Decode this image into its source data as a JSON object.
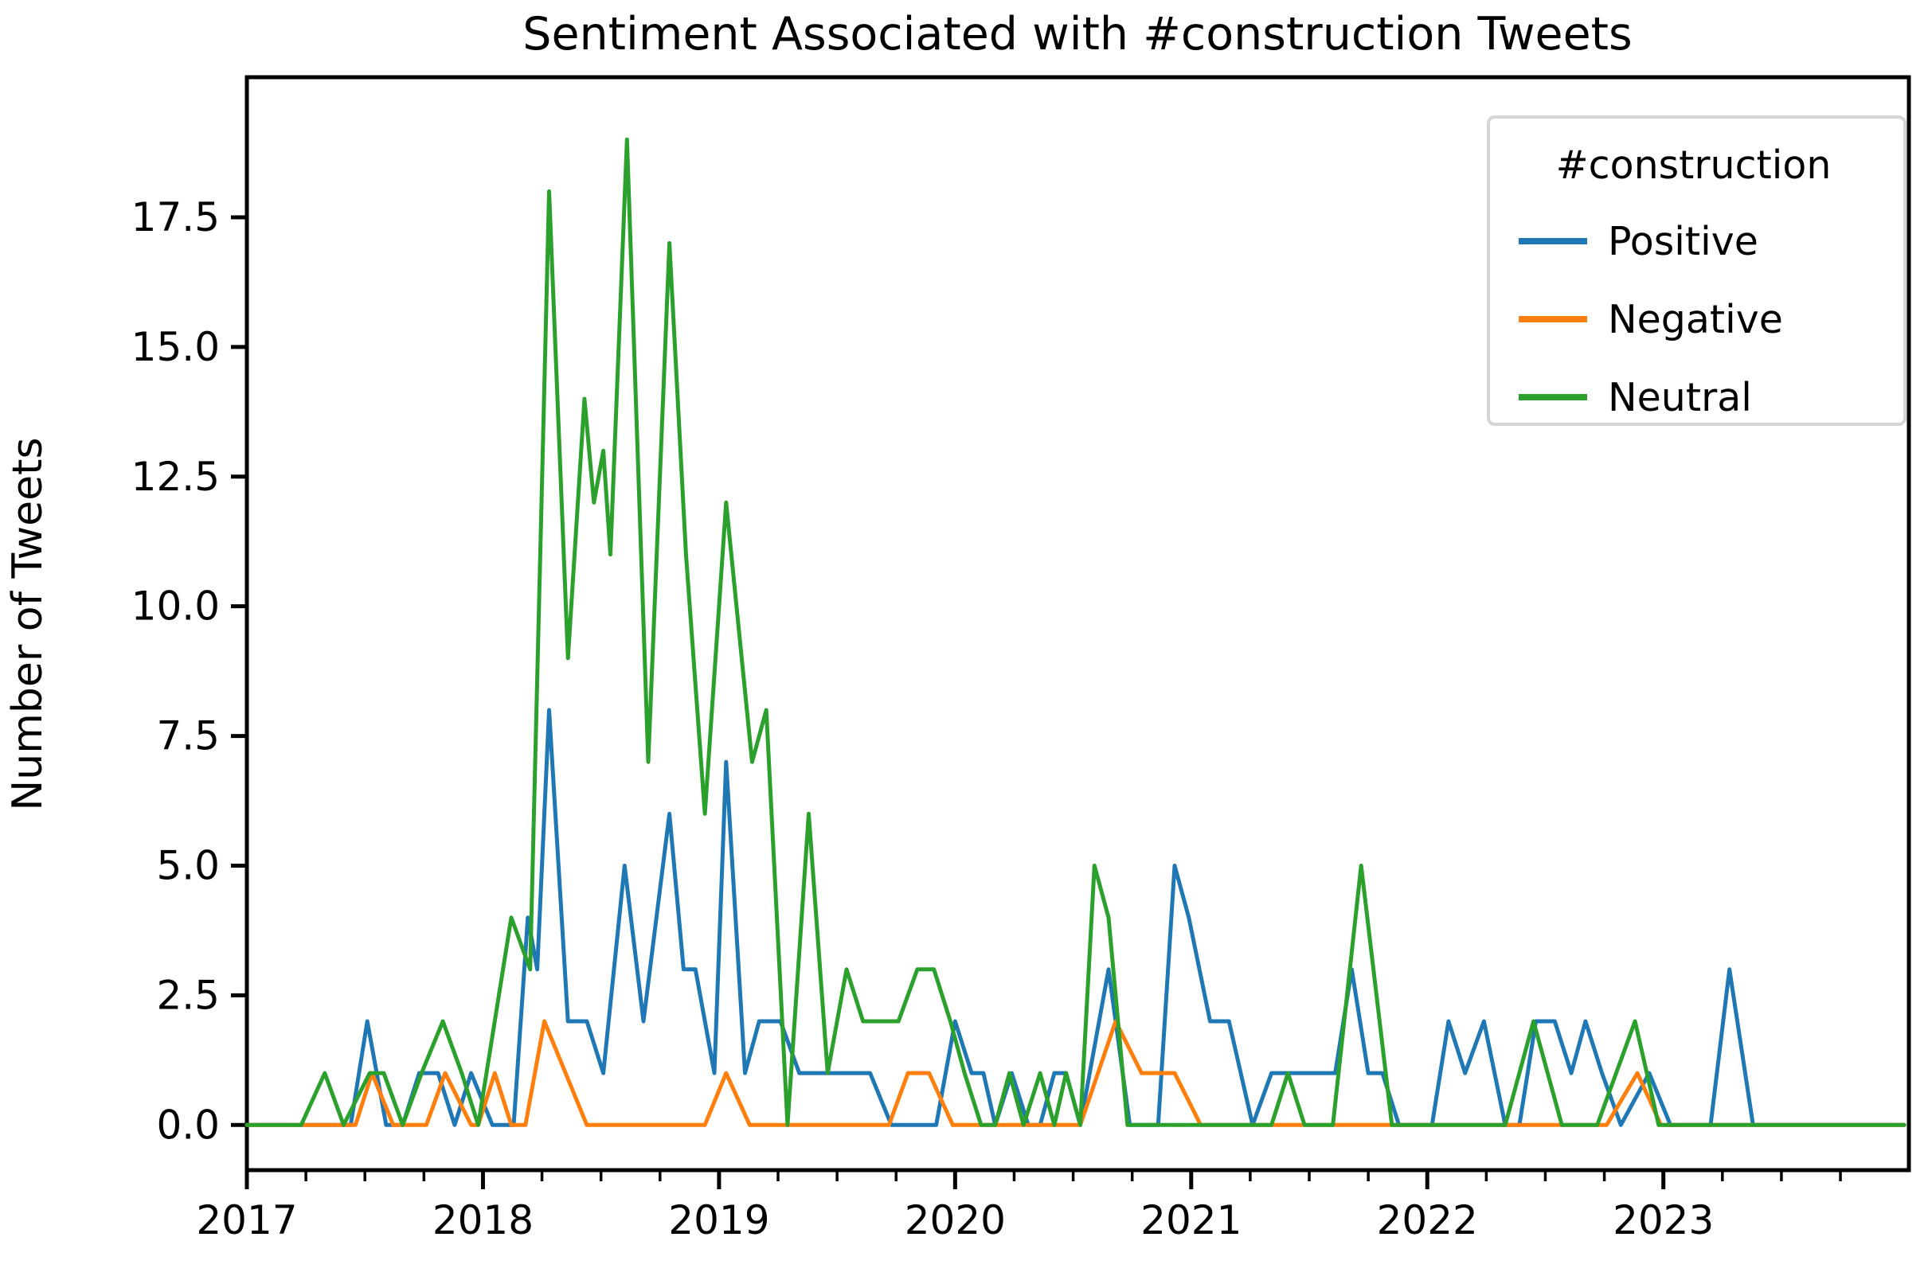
{
  "figure": {
    "title": "Sentiment Associated with #construction Tweets",
    "ylabel": "Number of Tweets"
  },
  "legend": {
    "title": "#construction",
    "entries": [
      {
        "label": "Positive",
        "color": "#1f77b4"
      },
      {
        "label": "Negative",
        "color": "#ff7f0e"
      },
      {
        "label": "Neutral",
        "color": "#2ca02c"
      }
    ]
  },
  "chart_data": {
    "type": "line",
    "title": "Sentiment Associated with #construction Tweets",
    "xlabel": "",
    "ylabel": "Number of Tweets",
    "xlim": [
      2017.0,
      2024.04
    ],
    "ylim": [
      -0.87,
      20.2
    ],
    "grid": false,
    "legend_position": "upper right",
    "legend_title": "#construction",
    "x_major_ticks": [
      2017,
      2018,
      2019,
      2020,
      2021,
      2022,
      2023
    ],
    "x_tick_labels": [
      "2017",
      "2018",
      "2019",
      "2020",
      "2021",
      "2022",
      "2023"
    ],
    "x_minor_tick_step": 0.25,
    "y_major_ticks": [
      0,
      2.5,
      5,
      7.5,
      10,
      12.5,
      15,
      17.5
    ],
    "y_tick_labels": [
      "0.0",
      "2.5",
      "5.0",
      "7.5",
      "10.0",
      "12.5",
      "15.0",
      "17.5"
    ],
    "series": [
      {
        "name": "Positive",
        "color": "#1f77b4",
        "points": [
          [
            2017.0,
            0
          ],
          [
            2017.44,
            0
          ],
          [
            2017.51,
            2
          ],
          [
            2017.59,
            0
          ],
          [
            2017.66,
            0
          ],
          [
            2017.73,
            1
          ],
          [
            2017.81,
            1
          ],
          [
            2017.88,
            0
          ],
          [
            2017.95,
            1
          ],
          [
            2018.04,
            0
          ],
          [
            2018.13,
            0
          ],
          [
            2018.19,
            4
          ],
          [
            2018.23,
            3
          ],
          [
            2018.28,
            8
          ],
          [
            2018.36,
            2
          ],
          [
            2018.44,
            2
          ],
          [
            2018.51,
            1
          ],
          [
            2018.6,
            5
          ],
          [
            2018.68,
            2
          ],
          [
            2018.79,
            6
          ],
          [
            2018.85,
            3
          ],
          [
            2018.9,
            3
          ],
          [
            2018.98,
            1
          ],
          [
            2019.03,
            7
          ],
          [
            2019.11,
            1
          ],
          [
            2019.17,
            2
          ],
          [
            2019.26,
            2
          ],
          [
            2019.34,
            1
          ],
          [
            2019.5,
            1
          ],
          [
            2019.64,
            1
          ],
          [
            2019.73,
            0
          ],
          [
            2019.92,
            0
          ],
          [
            2020.0,
            2
          ],
          [
            2020.07,
            1
          ],
          [
            2020.12,
            1
          ],
          [
            2020.17,
            0
          ],
          [
            2020.24,
            1
          ],
          [
            2020.31,
            0
          ],
          [
            2020.36,
            0
          ],
          [
            2020.42,
            1
          ],
          [
            2020.47,
            1
          ],
          [
            2020.53,
            0
          ],
          [
            2020.65,
            3
          ],
          [
            2020.74,
            0
          ],
          [
            2020.86,
            0
          ],
          [
            2020.93,
            5
          ],
          [
            2020.99,
            4
          ],
          [
            2021.08,
            2
          ],
          [
            2021.16,
            2
          ],
          [
            2021.26,
            0
          ],
          [
            2021.34,
            1
          ],
          [
            2021.44,
            1
          ],
          [
            2021.54,
            1
          ],
          [
            2021.61,
            1
          ],
          [
            2021.68,
            3
          ],
          [
            2021.75,
            1
          ],
          [
            2021.81,
            1
          ],
          [
            2021.88,
            0
          ],
          [
            2022.02,
            0
          ],
          [
            2022.09,
            2
          ],
          [
            2022.16,
            1
          ],
          [
            2022.24,
            2
          ],
          [
            2022.33,
            0
          ],
          [
            2022.39,
            0
          ],
          [
            2022.46,
            2
          ],
          [
            2022.54,
            2
          ],
          [
            2022.61,
            1
          ],
          [
            2022.67,
            2
          ],
          [
            2022.74,
            1
          ],
          [
            2022.82,
            0
          ],
          [
            2022.94,
            1
          ],
          [
            2023.03,
            0
          ],
          [
            2023.2,
            0
          ],
          [
            2023.28,
            3
          ],
          [
            2023.38,
            0
          ],
          [
            2023.7,
            0
          ],
          [
            2024.02,
            0
          ]
        ]
      },
      {
        "name": "Negative",
        "color": "#ff7f0e",
        "points": [
          [
            2017.0,
            0
          ],
          [
            2017.46,
            0
          ],
          [
            2017.53,
            1
          ],
          [
            2017.62,
            0
          ],
          [
            2017.76,
            0
          ],
          [
            2017.84,
            1
          ],
          [
            2017.95,
            0
          ],
          [
            2017.98,
            0
          ],
          [
            2018.05,
            1
          ],
          [
            2018.12,
            0
          ],
          [
            2018.18,
            0
          ],
          [
            2018.26,
            2
          ],
          [
            2018.35,
            1
          ],
          [
            2018.44,
            0
          ],
          [
            2018.7,
            0
          ],
          [
            2018.94,
            0
          ],
          [
            2019.03,
            1
          ],
          [
            2019.13,
            0
          ],
          [
            2019.5,
            0
          ],
          [
            2019.72,
            0
          ],
          [
            2019.8,
            1
          ],
          [
            2019.89,
            1
          ],
          [
            2019.99,
            0
          ],
          [
            2020.3,
            0
          ],
          [
            2020.53,
            0
          ],
          [
            2020.68,
            2
          ],
          [
            2020.79,
            1
          ],
          [
            2020.93,
            1
          ],
          [
            2021.04,
            0
          ],
          [
            2021.6,
            0
          ],
          [
            2022.3,
            0
          ],
          [
            2022.76,
            0
          ],
          [
            2022.89,
            1
          ],
          [
            2022.99,
            0
          ],
          [
            2023.5,
            0
          ],
          [
            2024.02,
            0
          ]
        ]
      },
      {
        "name": "Neutral",
        "color": "#2ca02c",
        "points": [
          [
            2017.0,
            0
          ],
          [
            2017.23,
            0
          ],
          [
            2017.33,
            1
          ],
          [
            2017.41,
            0
          ],
          [
            2017.52,
            1
          ],
          [
            2017.58,
            1
          ],
          [
            2017.66,
            0
          ],
          [
            2017.74,
            1
          ],
          [
            2017.83,
            2
          ],
          [
            2017.91,
            1
          ],
          [
            2017.98,
            0
          ],
          [
            2018.12,
            4
          ],
          [
            2018.2,
            3
          ],
          [
            2018.28,
            18
          ],
          [
            2018.36,
            9
          ],
          [
            2018.43,
            14
          ],
          [
            2018.47,
            12
          ],
          [
            2018.51,
            13
          ],
          [
            2018.54,
            11
          ],
          [
            2018.61,
            19
          ],
          [
            2018.7,
            7
          ],
          [
            2018.79,
            17
          ],
          [
            2018.86,
            11
          ],
          [
            2018.94,
            6
          ],
          [
            2019.03,
            12
          ],
          [
            2019.14,
            7
          ],
          [
            2019.2,
            8
          ],
          [
            2019.29,
            0
          ],
          [
            2019.38,
            6
          ],
          [
            2019.46,
            1
          ],
          [
            2019.54,
            3
          ],
          [
            2019.61,
            2
          ],
          [
            2019.76,
            2
          ],
          [
            2019.84,
            3
          ],
          [
            2019.91,
            3
          ],
          [
            2019.98,
            2
          ],
          [
            2020.04,
            1
          ],
          [
            2020.11,
            0
          ],
          [
            2020.17,
            0
          ],
          [
            2020.23,
            1
          ],
          [
            2020.29,
            0
          ],
          [
            2020.36,
            1
          ],
          [
            2020.42,
            0
          ],
          [
            2020.47,
            1
          ],
          [
            2020.53,
            0
          ],
          [
            2020.59,
            5
          ],
          [
            2020.65,
            4
          ],
          [
            2020.73,
            0
          ],
          [
            2021.0,
            0
          ],
          [
            2021.34,
            0
          ],
          [
            2021.41,
            1
          ],
          [
            2021.48,
            0
          ],
          [
            2021.6,
            0
          ],
          [
            2021.72,
            5
          ],
          [
            2021.85,
            0
          ],
          [
            2022.2,
            0
          ],
          [
            2022.33,
            0
          ],
          [
            2022.45,
            2
          ],
          [
            2022.57,
            0
          ],
          [
            2022.72,
            0
          ],
          [
            2022.88,
            2
          ],
          [
            2022.98,
            0
          ],
          [
            2023.4,
            0
          ],
          [
            2024.02,
            0
          ]
        ]
      }
    ]
  },
  "style": {
    "axis_color": "#000000",
    "legend_border_color": "#d5d5d5",
    "background": "#ffffff"
  }
}
